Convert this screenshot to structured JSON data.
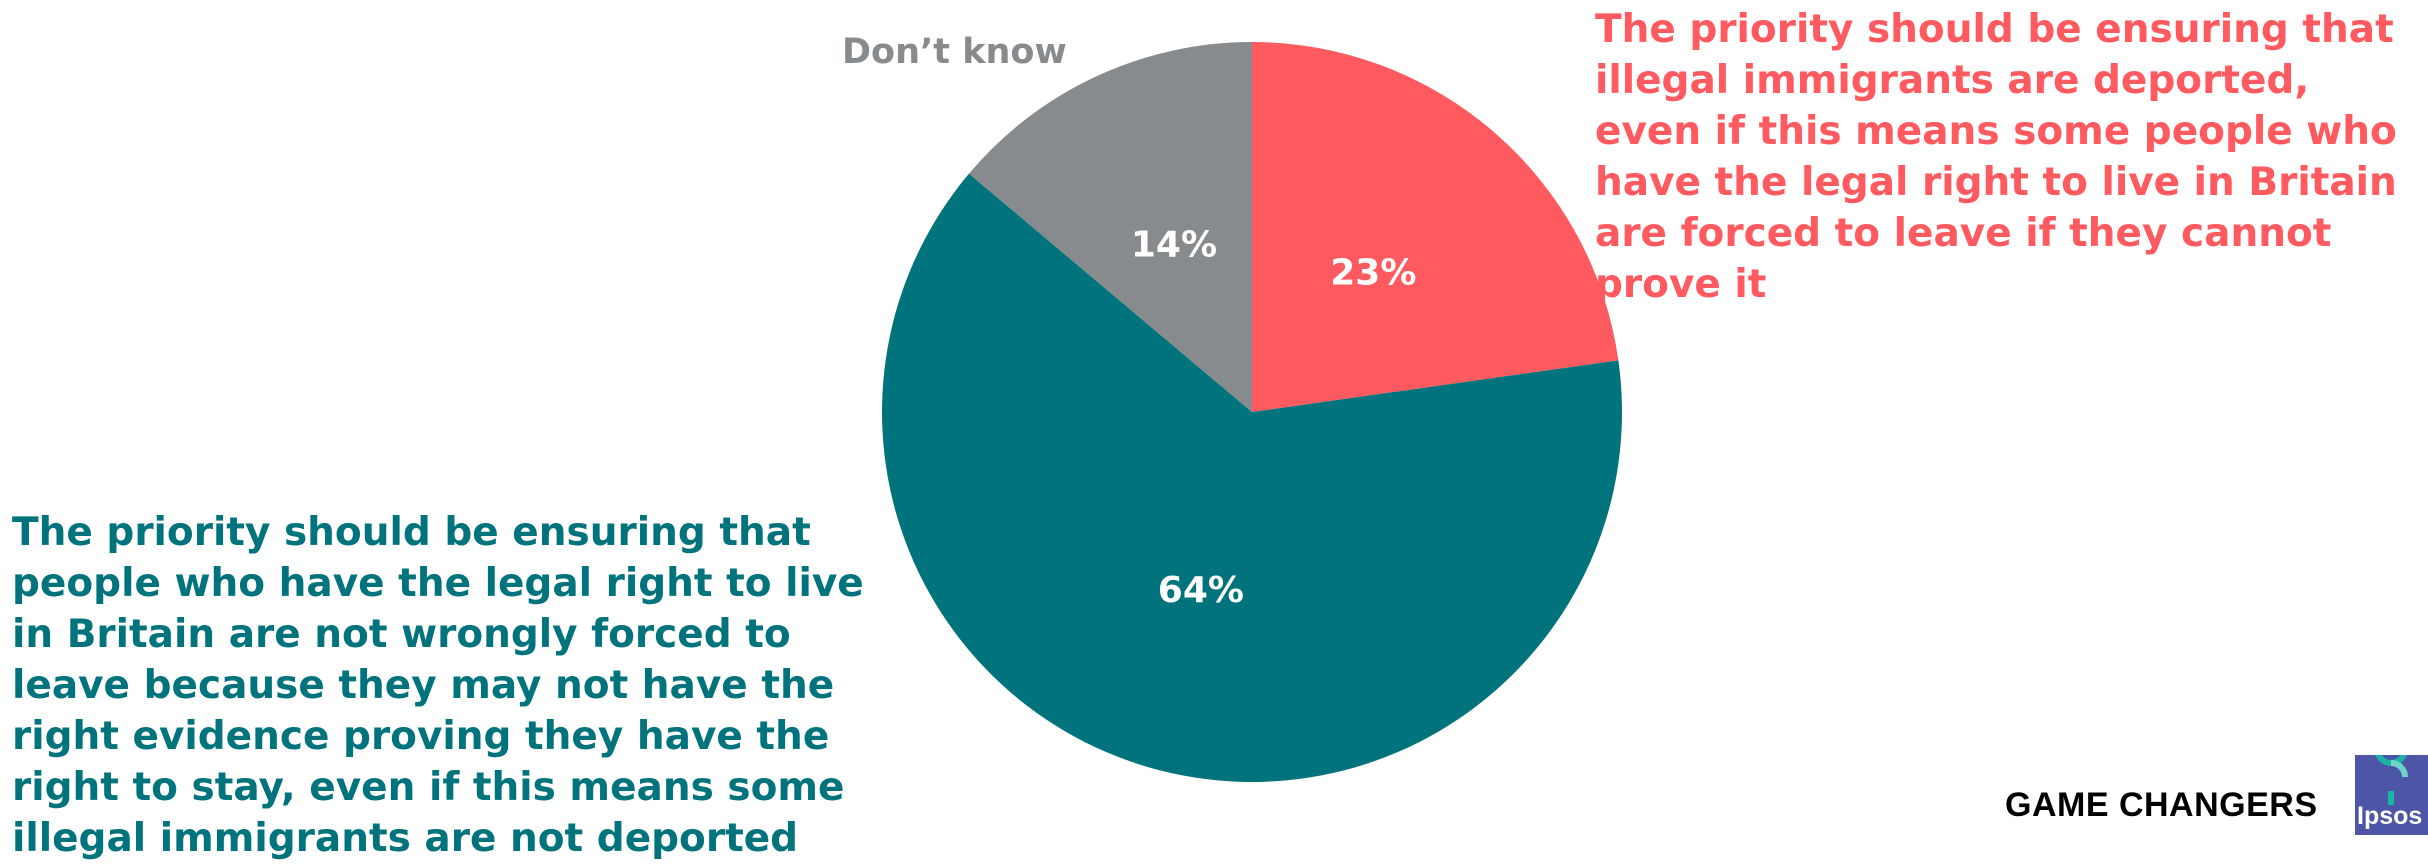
{
  "chart_data": {
    "type": "pie",
    "slices": [
      {
        "label": "The priority should be ensuring that illegal immigrants are deported, even if this means some people who have the legal right to live in Britain are forced to leave if they cannot prove it",
        "value": 23,
        "display": "23%",
        "color": "#ff5a5f"
      },
      {
        "label": "The priority should be ensuring that people who have the legal right to live in Britain are not wrongly forced to leave because they may not have the right evidence proving they have the right to stay, even if this means some illegal immigrants are not deported",
        "value": 64,
        "display": "64%",
        "color": "#00737c"
      },
      {
        "label": "Don’t know",
        "value": 14,
        "display": "14%",
        "color": "#888b8d"
      }
    ],
    "start": "12 o'clock",
    "direction": "clockwise"
  },
  "footer": {
    "brand_text": "GAME CHANGERS",
    "logo_text": "Ipsos",
    "logo_color": "#4d56a6",
    "logo_accent": "#1bb3a6"
  }
}
